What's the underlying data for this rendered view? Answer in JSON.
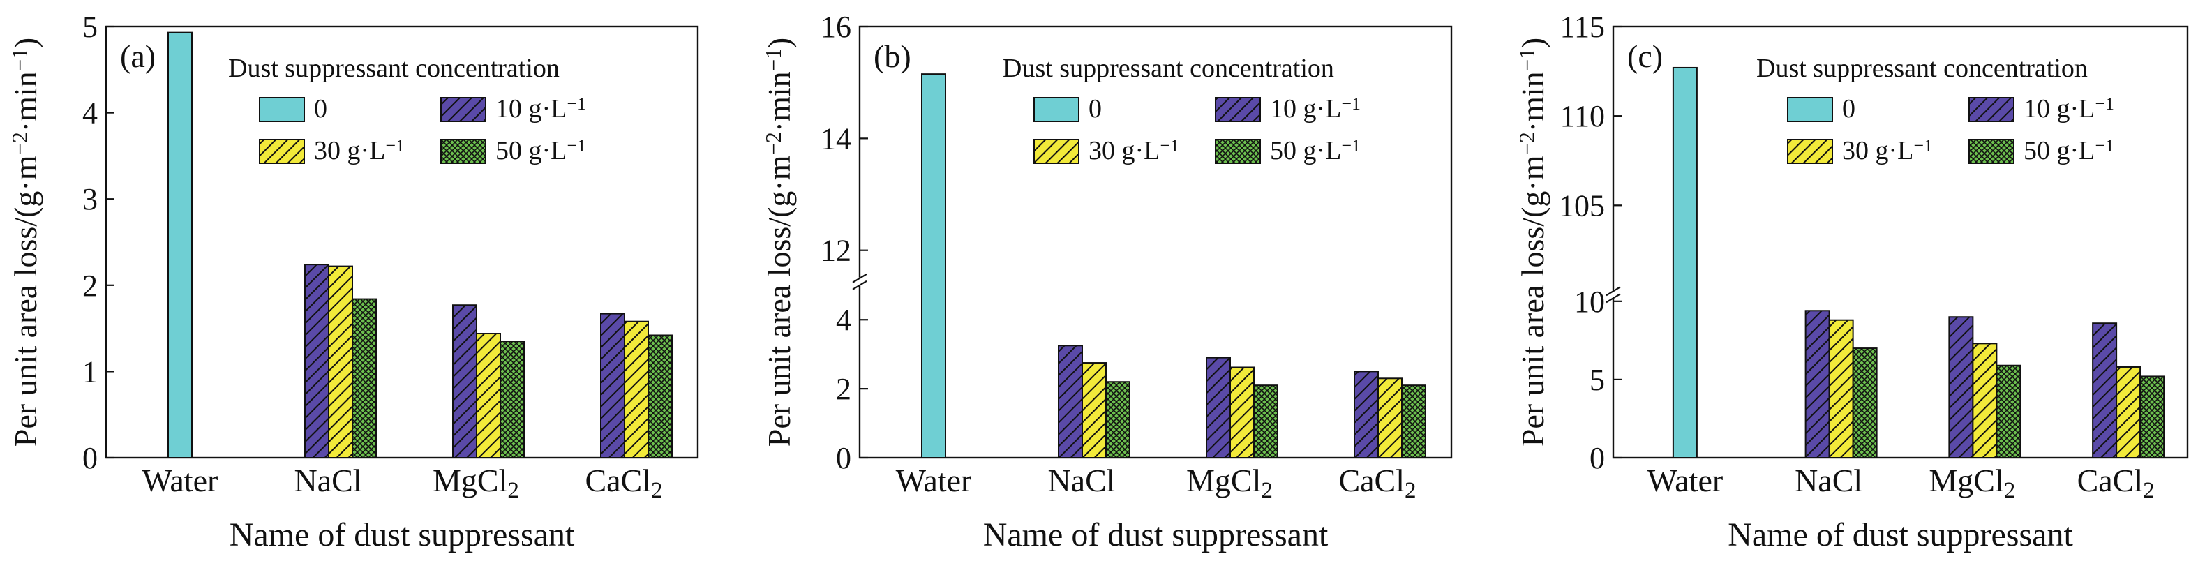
{
  "chart_data": [
    {
      "type": "bar",
      "panel_label": "(a)",
      "ylabel": "Per unit area loss/(g·m⁻²·min⁻¹)",
      "xlabel": "Name of dust suppressant",
      "categories": [
        "Water",
        "NaCl",
        "MgCl₂",
        "CaCl₂"
      ],
      "ylim": [
        0,
        5
      ],
      "yticks": [
        "0",
        "1",
        "2",
        "3",
        "4",
        "5"
      ],
      "axis_break": null,
      "series": [
        {
          "name": "0",
          "values": [
            4.93,
            null,
            null,
            null
          ]
        },
        {
          "name": "10 g·L⁻¹",
          "values": [
            null,
            2.24,
            1.77,
            1.67
          ]
        },
        {
          "name": "30 g·L⁻¹",
          "values": [
            null,
            2.22,
            1.44,
            1.58
          ]
        },
        {
          "name": "50 g·L⁻¹",
          "values": [
            null,
            1.84,
            1.35,
            1.42
          ]
        }
      ],
      "legend_title": "Dust suppressant concentration",
      "legend_position": "top-right"
    },
    {
      "type": "bar",
      "panel_label": "(b)",
      "ylabel": "Per unit area loss/(g·m⁻²·min⁻¹)",
      "xlabel": "Name of dust suppressant",
      "categories": [
        "Water",
        "NaCl",
        "MgCl₂",
        "CaCl₂"
      ],
      "ylim": [
        0,
        16
      ],
      "yticks": [
        "0",
        "2",
        "4",
        "12",
        "14",
        "16"
      ],
      "axis_break": [
        5,
        11.5
      ],
      "series": [
        {
          "name": "0",
          "values": [
            15.15,
            null,
            null,
            null
          ]
        },
        {
          "name": "10 g·L⁻¹",
          "values": [
            null,
            3.25,
            2.9,
            2.5
          ]
        },
        {
          "name": "30 g·L⁻¹",
          "values": [
            null,
            2.75,
            2.62,
            2.3
          ]
        },
        {
          "name": "50 g·L⁻¹",
          "values": [
            null,
            2.2,
            2.1,
            2.1
          ]
        }
      ],
      "legend_title": "Dust suppressant concentration",
      "legend_position": "top-right"
    },
    {
      "type": "bar",
      "panel_label": "(c)",
      "ylabel": "Per unit area loss/(g·m⁻²·min⁻¹)",
      "xlabel": "Name of dust suppressant",
      "categories": [
        "Water",
        "NaCl",
        "MgCl₂",
        "CaCl₂"
      ],
      "ylim": [
        0,
        115
      ],
      "yticks": [
        "0",
        "5",
        "10",
        "105",
        "110",
        "115"
      ],
      "axis_break": [
        10.2,
        100.2
      ],
      "series": [
        {
          "name": "0",
          "values": [
            112.7,
            null,
            null,
            null
          ]
        },
        {
          "name": "10 g·L⁻¹",
          "values": [
            null,
            9.4,
            9.0,
            8.6
          ]
        },
        {
          "name": "30 g·L⁻¹",
          "values": [
            null,
            8.8,
            7.3,
            5.8
          ]
        },
        {
          "name": "50 g·L⁻¹",
          "values": [
            null,
            7.0,
            5.9,
            5.2
          ]
        }
      ],
      "legend_title": "Dust suppressant concentration",
      "legend_position": "top-right"
    }
  ],
  "colors": {
    "water": "#6fcfd3",
    "g10": "#5a4aa8",
    "g30": "#f2ea3a",
    "g50": "#6cbf4e"
  }
}
